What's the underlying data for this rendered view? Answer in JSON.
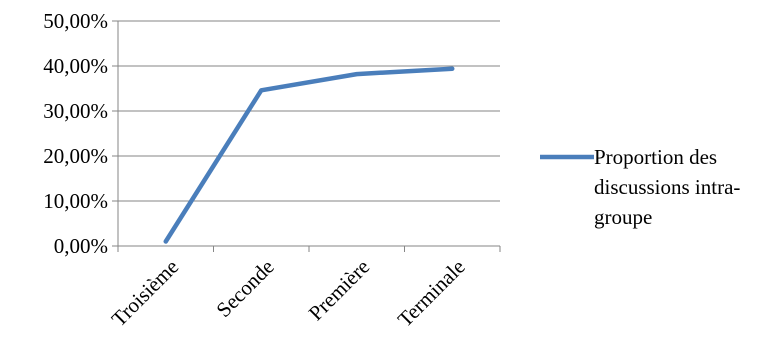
{
  "chart_data": {
    "type": "line",
    "categories": [
      "Troisième",
      "Seconde",
      "Première",
      "Terminale"
    ],
    "series": [
      {
        "name": "Proportion des discussions intra-groupe",
        "name_lines": [
          "Proportion des",
          "discussions intra-",
          "groupe"
        ],
        "values": [
          1.0,
          34.6,
          38.2,
          39.4
        ],
        "color": "#4a7ebb"
      }
    ],
    "ylim": [
      0,
      50
    ],
    "yticks": [
      0,
      10,
      20,
      30,
      40,
      50
    ],
    "ytick_labels": [
      "0,00%",
      "10,00%",
      "20,00%",
      "30,00%",
      "40,00%",
      "50,00%"
    ],
    "title": "",
    "xlabel": "",
    "ylabel": "",
    "grid": "horizontal",
    "legend_position": "right",
    "gridline_color": "#868686"
  }
}
